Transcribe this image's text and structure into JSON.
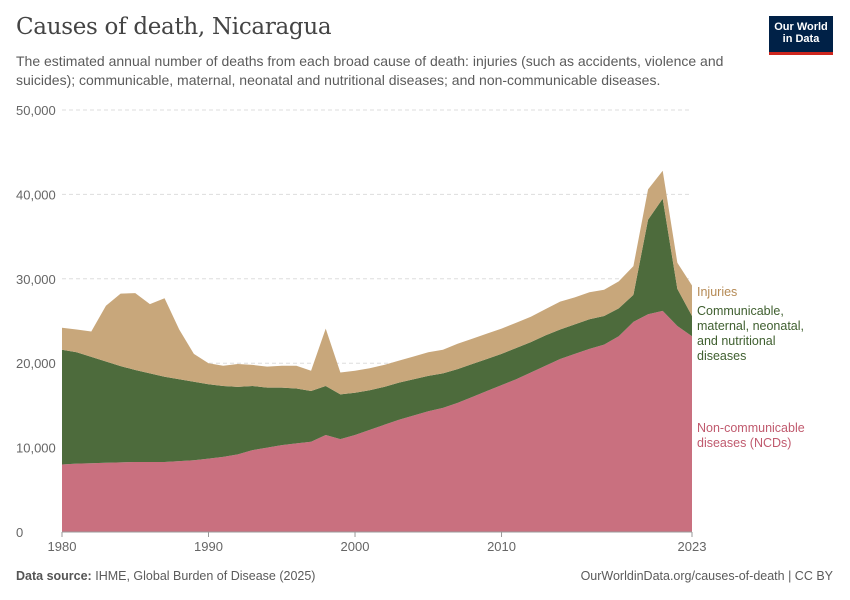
{
  "header": {
    "title": "Causes of death, Nicaragua",
    "subtitle": "The estimated annual number of deaths from each broad cause of death: injuries (such as accidents, violence and suicides); communicable, maternal, neonatal and nutritional diseases; and non-communicable diseases.",
    "logo_line1": "Our World",
    "logo_line2": "in Data"
  },
  "footer": {
    "source_label": "Data source:",
    "source_text": "IHME, Global Burden of Disease (2025)",
    "url": "OurWorldinData.org/causes-of-death | CC BY"
  },
  "chart_data": {
    "type": "area",
    "stacked": true,
    "x": [
      1980,
      1981,
      1982,
      1983,
      1984,
      1985,
      1986,
      1987,
      1988,
      1989,
      1990,
      1991,
      1992,
      1993,
      1994,
      1995,
      1996,
      1997,
      1998,
      1999,
      2000,
      2001,
      2002,
      2003,
      2004,
      2005,
      2006,
      2007,
      2008,
      2009,
      2010,
      2011,
      2012,
      2013,
      2014,
      2015,
      2016,
      2017,
      2018,
      2019,
      2020,
      2021,
      2022,
      2023
    ],
    "xlim": [
      1980,
      2023
    ],
    "ylim": [
      0,
      50000
    ],
    "y_ticks": [
      0,
      10000,
      20000,
      30000,
      40000,
      50000
    ],
    "y_tick_labels": [
      "0",
      "10,000",
      "20,000",
      "30,000",
      "40,000",
      "50,000"
    ],
    "x_ticks": [
      1980,
      1990,
      2000,
      2010,
      2023
    ],
    "x_tick_labels": [
      "1980",
      "1990",
      "2000",
      "2010",
      "2023"
    ],
    "grid": true,
    "series": [
      {
        "name": "Non-communicable diseases (NCDs)",
        "label_lines": [
          "Non-communicable",
          "diseases (NCDs)"
        ],
        "color": "#c9707f",
        "label_color": "#c05a6e",
        "values": [
          8000,
          8100,
          8150,
          8200,
          8250,
          8300,
          8300,
          8300,
          8400,
          8500,
          8700,
          8900,
          9200,
          9700,
          10000,
          10300,
          10500,
          10700,
          11500,
          11000,
          11500,
          12100,
          12700,
          13300,
          13800,
          14300,
          14700,
          15300,
          16000,
          16700,
          17400,
          18100,
          18900,
          19700,
          20500,
          21100,
          21700,
          22200,
          23200,
          24900,
          25800,
          26200,
          24400,
          23200
        ]
      },
      {
        "name": "Communicable, maternal, neonatal, and nutritional diseases",
        "label_lines": [
          "Communicable,",
          "maternal, neonatal,",
          "and nutritional",
          "diseases"
        ],
        "color": "#4d6b3c",
        "label_color": "#3f5f2f",
        "values": [
          13600,
          13200,
          12600,
          12000,
          11400,
          10900,
          10500,
          10100,
          9700,
          9300,
          8800,
          8400,
          8000,
          7600,
          7100,
          6800,
          6500,
          6000,
          5800,
          5300,
          5000,
          4700,
          4500,
          4400,
          4300,
          4200,
          4100,
          4000,
          3900,
          3800,
          3700,
          3700,
          3600,
          3600,
          3500,
          3500,
          3500,
          3400,
          3300,
          3200,
          11200,
          13300,
          4400,
          2400
        ]
      },
      {
        "name": "Injuries",
        "label_lines": [
          "Injuries"
        ],
        "color": "#c8a77b",
        "label_color": "#b58a55",
        "values": [
          2600,
          2700,
          3000,
          6600,
          8600,
          9100,
          8200,
          9300,
          5900,
          3300,
          2500,
          2400,
          2700,
          2500,
          2500,
          2600,
          2700,
          2400,
          6800,
          2600,
          2600,
          2600,
          2600,
          2600,
          2700,
          2800,
          2800,
          3000,
          3000,
          3000,
          3000,
          3000,
          3000,
          3100,
          3300,
          3200,
          3200,
          3100,
          3200,
          3400,
          3600,
          3300,
          3100,
          3600
        ]
      }
    ]
  }
}
